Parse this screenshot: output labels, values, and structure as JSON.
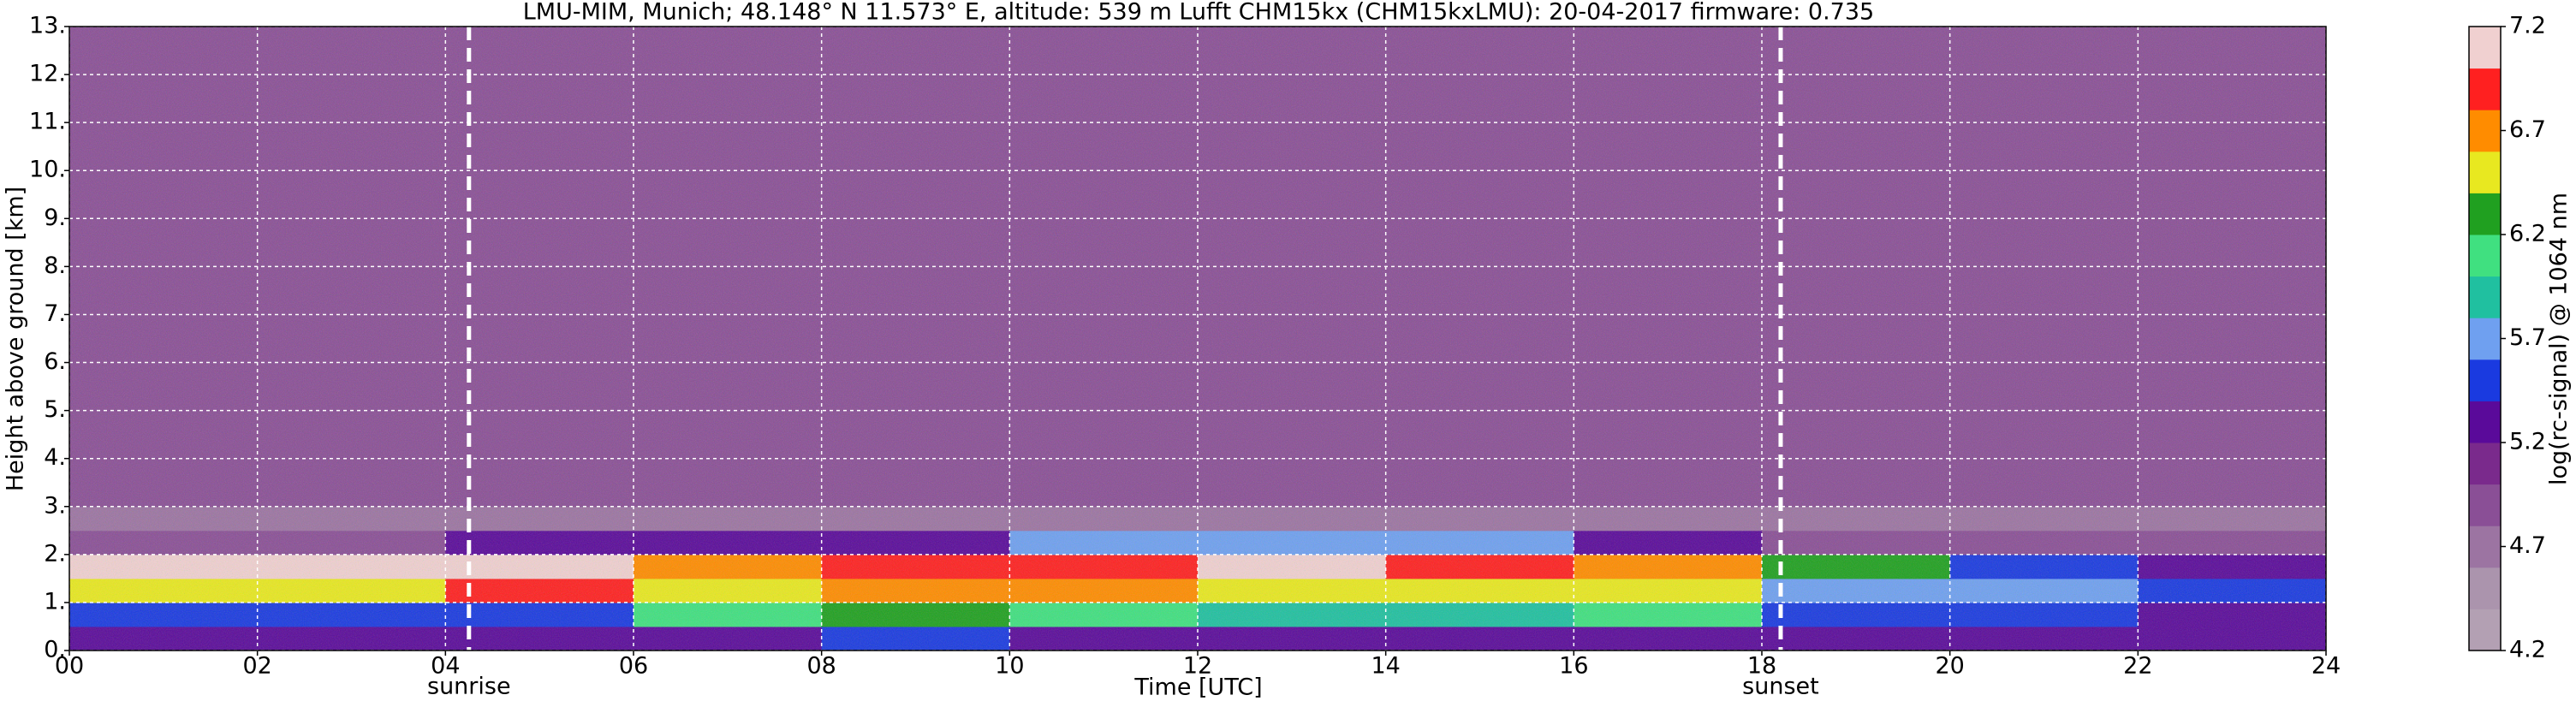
{
  "chart_data": {
    "type": "heatmap",
    "title": "LMU-MIM, Munich; 48.148° N 11.573° E, altitude: 539 m    Lufft CHM15kx (CHM15kxLMU): 20-04-2017    firmware: 0.735",
    "x_label": "Time [UTC]",
    "y_label": "Height above ground [km]",
    "colorbar_label": "log(rc-signal) @ 1064 nm",
    "x": [
      0,
      2,
      4,
      6,
      8,
      10,
      12,
      14,
      16,
      18,
      20,
      22,
      24
    ],
    "y": [
      0,
      0.5,
      1,
      1.5,
      2,
      2.5,
      3,
      5,
      7,
      9,
      11,
      13
    ],
    "z": [
      [
        5.3,
        5.3,
        5.3,
        5.3,
        5.4,
        5.3,
        5.3,
        5.3,
        5.3,
        5.2,
        5.2,
        5.2
      ],
      [
        5.6,
        5.5,
        5.6,
        6.1,
        6.3,
        6.0,
        5.9,
        5.9,
        6.0,
        5.5,
        5.4,
        5.3
      ],
      [
        6.5,
        6.6,
        6.9,
        6.4,
        6.7,
        6.7,
        6.6,
        6.6,
        6.5,
        5.7,
        5.7,
        5.6
      ],
      [
        7.1,
        7.1,
        7.1,
        6.8,
        6.9,
        7.0,
        7.1,
        6.9,
        6.8,
        6.2,
        5.6,
        5.2
      ],
      [
        4.9,
        4.9,
        5.3,
        5.2,
        5.2,
        5.8,
        5.8,
        5.8,
        5.2,
        4.9,
        4.9,
        4.9
      ],
      [
        4.8,
        4.8,
        4.8,
        4.8,
        4.8,
        4.8,
        4.8,
        4.8,
        4.8,
        4.8,
        4.8,
        4.8
      ],
      [
        4.9,
        4.9,
        4.9,
        4.9,
        4.9,
        4.9,
        4.9,
        4.9,
        4.9,
        4.9,
        4.9,
        4.9
      ],
      [
        4.9,
        4.9,
        4.9,
        4.9,
        4.9,
        4.9,
        4.9,
        4.9,
        4.9,
        4.9,
        4.9,
        4.9
      ],
      [
        4.9,
        4.9,
        4.9,
        4.9,
        4.9,
        4.9,
        4.9,
        4.9,
        4.9,
        4.9,
        4.9,
        4.9
      ],
      [
        4.9,
        4.9,
        4.9,
        4.9,
        4.9,
        4.9,
        4.9,
        4.9,
        4.9,
        4.9,
        4.9,
        4.9
      ],
      [
        4.9,
        4.9,
        4.9,
        4.9,
        4.9,
        4.9,
        4.9,
        4.9,
        4.9,
        4.9,
        4.9,
        4.9
      ]
    ],
    "xlim": [
      0,
      24
    ],
    "xticks": [
      {
        "value": 0,
        "label": "00"
      },
      {
        "value": 2,
        "label": "02"
      },
      {
        "value": 4,
        "label": "04"
      },
      {
        "value": 6,
        "label": "06"
      },
      {
        "value": 8,
        "label": "08"
      },
      10,
      12,
      14,
      16,
      18,
      20,
      22,
      24
    ],
    "ylim": [
      0,
      13
    ],
    "yticks": [
      {
        "value": 0,
        "label": "0."
      },
      {
        "value": 1,
        "label": "1."
      },
      {
        "value": 2,
        "label": "2."
      },
      {
        "value": 3,
        "label": "3."
      },
      {
        "value": 4,
        "label": "4."
      },
      {
        "value": 5,
        "label": "5."
      },
      {
        "value": 6,
        "label": "6."
      },
      {
        "value": 7,
        "label": "7."
      },
      {
        "value": 8,
        "label": "8."
      },
      {
        "value": 9,
        "label": "9."
      },
      {
        "value": 10,
        "label": "10."
      },
      {
        "value": 11,
        "label": "11."
      },
      {
        "value": 12,
        "label": "12."
      },
      {
        "value": 13,
        "label": "13."
      }
    ],
    "zlim": [
      4.2,
      7.2
    ],
    "zticks": [
      4.2,
      4.7,
      5.2,
      5.7,
      6.2,
      6.7,
      7.2
    ],
    "colormap": [
      "#b3a0b3",
      "#ab94ad",
      "#9c74a2",
      "#8a4f96",
      "#7a2a8c",
      "#5a0a9a",
      "#1a3ae0",
      "#6fa0f0",
      "#20c0a0",
      "#40e080",
      "#20a020",
      "#e8e820",
      "#ff8c00",
      "#ff2020",
      "#f0d0d0"
    ],
    "grid": true,
    "annotations": [
      {
        "x": 4.25,
        "text": "sunrise"
      },
      {
        "x": 18.2,
        "text": "sunset"
      }
    ]
  }
}
